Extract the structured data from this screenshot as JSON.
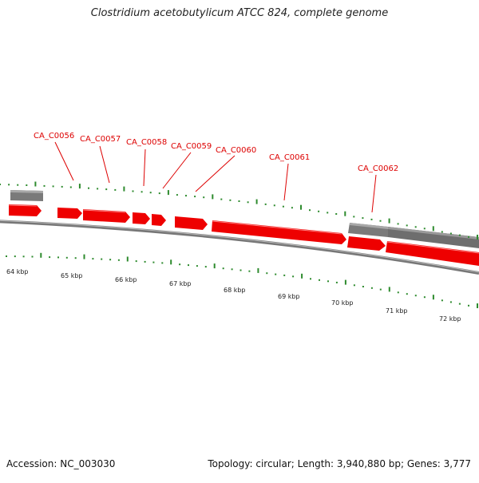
{
  "title": "Clostridium acetobutylicum ATCC 824, complete genome",
  "footer": {
    "accession": "Accession: NC_003030",
    "summary": "Topology: circular; Length: 3,940,880 bp; Genes: 3,777"
  },
  "colors": {
    "forward_gene": "#ff0000",
    "reverse_gene": "#808080",
    "backbone": "#888888",
    "gc_ticks": "#2e8b2e",
    "label": "#dd0000",
    "scale_label": "#222222"
  },
  "scale_labels": [
    "64 kbp",
    "65 kbp",
    "66 kbp",
    "67 kbp",
    "68 kbp",
    "69 kbp",
    "70 kbp",
    "71 kbp",
    "72 kbp"
  ],
  "gene_labels": [
    "CA_C0056",
    "CA_C0057",
    "CA_C0058",
    "CA_C0059",
    "CA_C0060",
    "CA_C0061",
    "CA_C0062"
  ]
}
